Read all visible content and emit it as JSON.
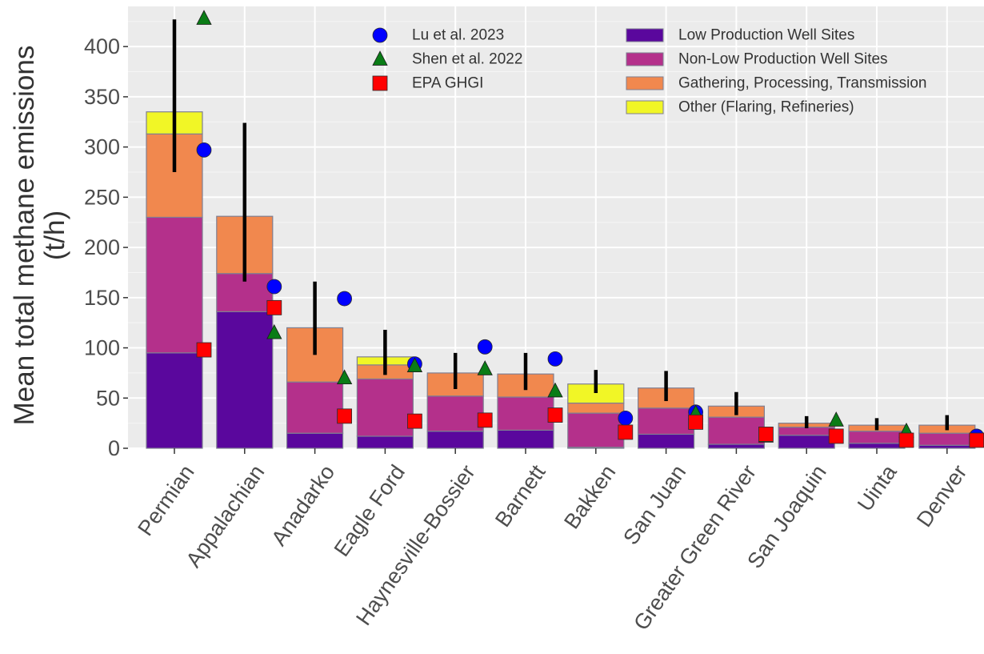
{
  "chart_data": {
    "type": "bar",
    "subtype": "stacked-bar-with-error-bars-and-point-overlays",
    "ylabel_lines": [
      "Mean total methane emissions",
      "(t/h)"
    ],
    "xlabel": "",
    "ylim": [
      0,
      440
    ],
    "yticks": [
      0,
      50,
      100,
      150,
      200,
      250,
      300,
      350,
      400
    ],
    "grid": true,
    "categories": [
      "Permian",
      "Appalachian",
      "Anadarko",
      "Eagle Ford",
      "Haynesville-Bossier",
      "Barnett",
      "Bakken",
      "San Juan",
      "Greater Green River",
      "San Joaquin",
      "Uinta",
      "Denver"
    ],
    "series": [
      {
        "name": "Low Production Well Sites",
        "color": "#5a079d",
        "values": [
          95,
          136,
          15,
          12,
          17,
          18,
          1,
          14,
          4,
          13,
          5,
          3
        ]
      },
      {
        "name": "Non-Low Production Well Sites",
        "color": "#b4308b",
        "values": [
          135,
          38,
          51,
          57,
          35,
          33,
          34,
          26,
          27,
          8,
          12,
          12
        ]
      },
      {
        "name": "Gathering, Processing, Transmission",
        "color": "#f1884e",
        "values": [
          83,
          57,
          54,
          14,
          23,
          23,
          10,
          20,
          11,
          4,
          6,
          8
        ]
      },
      {
        "name": "Other (Flaring, Refineries)",
        "color": "#f1f626",
        "values": [
          22,
          0,
          0,
          8,
          0,
          0,
          19,
          0,
          0,
          0,
          0,
          0
        ]
      }
    ],
    "error_bars": {
      "color": "#000000",
      "low": [
        275,
        166,
        93,
        73,
        59,
        58,
        55,
        47,
        33,
        20,
        18,
        18
      ],
      "high": [
        427,
        324,
        166,
        118,
        95,
        95,
        78,
        77,
        56,
        32,
        30,
        33
      ]
    },
    "points": [
      {
        "name": "Lu et al. 2023",
        "marker": "circle",
        "color": "#0000ff",
        "values": [
          297,
          161,
          149,
          84,
          101,
          89,
          30,
          36,
          null,
          null,
          null,
          12
        ]
      },
      {
        "name": "Shen et al. 2022",
        "marker": "triangle",
        "color": "#0a7c16",
        "values": [
          428,
          115,
          70,
          82,
          79,
          57,
          null,
          35,
          12,
          28,
          17,
          null
        ]
      },
      {
        "name": "EPA GHGI",
        "marker": "square",
        "color": "#ff0000",
        "values": [
          98,
          140,
          32,
          27,
          28,
          33,
          16,
          26,
          14,
          12,
          8,
          8
        ]
      }
    ],
    "legend_position": "top-right"
  }
}
